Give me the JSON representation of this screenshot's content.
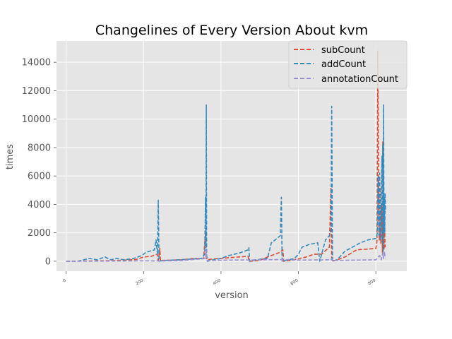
{
  "chart_data": {
    "type": "line",
    "title": "Changelines of Every Version About kvm",
    "xlabel": "version",
    "ylabel": "times",
    "xlim": [
      -25,
      880
    ],
    "ylim": [
      -700,
      15500
    ],
    "xticks": [
      0,
      200,
      400,
      600,
      800
    ],
    "yticks": [
      0,
      2000,
      4000,
      6000,
      8000,
      10000,
      12000,
      14000
    ],
    "grid": true,
    "legend_position": "top-right",
    "colors": {
      "background": "#e5e5e5",
      "grid": "#ffffff",
      "subCount": "#e24a33",
      "addCount": "#348abd",
      "annotationCount": "#988ed5"
    },
    "series": [
      {
        "name": "subCount",
        "color": "#e24a33",
        "points": [
          [
            0,
            0
          ],
          [
            60,
            20
          ],
          [
            120,
            40
          ],
          [
            180,
            120
          ],
          [
            200,
            300
          ],
          [
            220,
            350
          ],
          [
            235,
            500
          ],
          [
            238,
            50
          ],
          [
            242,
            900
          ],
          [
            244,
            0
          ],
          [
            250,
            60
          ],
          [
            300,
            100
          ],
          [
            330,
            200
          ],
          [
            355,
            200
          ],
          [
            360,
            2000
          ],
          [
            362,
            300
          ],
          [
            364,
            100
          ],
          [
            375,
            150
          ],
          [
            420,
            250
          ],
          [
            470,
            350
          ],
          [
            472,
            0
          ],
          [
            500,
            50
          ],
          [
            520,
            300
          ],
          [
            550,
            600
          ],
          [
            560,
            800
          ],
          [
            562,
            0
          ],
          [
            580,
            50
          ],
          [
            620,
            300
          ],
          [
            640,
            500
          ],
          [
            660,
            500
          ],
          [
            680,
            1000
          ],
          [
            684,
            5200
          ],
          [
            686,
            0
          ],
          [
            700,
            100
          ],
          [
            720,
            300
          ],
          [
            750,
            800
          ],
          [
            800,
            900
          ],
          [
            803,
            1400
          ],
          [
            805,
            14800
          ],
          [
            807,
            6000
          ],
          [
            809,
            1500
          ],
          [
            811,
            5200
          ],
          [
            813,
            1200
          ],
          [
            815,
            4000
          ],
          [
            817,
            600
          ],
          [
            818,
            8400
          ],
          [
            819,
            1500
          ],
          [
            820,
            6400
          ],
          [
            821,
            800
          ],
          [
            822,
            3200
          ],
          [
            823,
            2000
          ],
          [
            824,
            1000
          ],
          [
            825,
            1200
          ]
        ]
      },
      {
        "name": "addCount",
        "color": "#348abd",
        "points": [
          [
            0,
            0
          ],
          [
            30,
            0
          ],
          [
            45,
            100
          ],
          [
            60,
            200
          ],
          [
            80,
            100
          ],
          [
            100,
            300
          ],
          [
            115,
            100
          ],
          [
            130,
            200
          ],
          [
            150,
            100
          ],
          [
            175,
            200
          ],
          [
            195,
            400
          ],
          [
            205,
            600
          ],
          [
            215,
            700
          ],
          [
            228,
            800
          ],
          [
            232,
            1500
          ],
          [
            236,
            500
          ],
          [
            238,
            4300
          ],
          [
            240,
            0
          ],
          [
            250,
            50
          ],
          [
            290,
            100
          ],
          [
            320,
            150
          ],
          [
            350,
            200
          ],
          [
            358,
            500
          ],
          [
            360,
            4500
          ],
          [
            361,
            1000
          ],
          [
            362,
            11000
          ],
          [
            363,
            500
          ],
          [
            365,
            0
          ],
          [
            380,
            100
          ],
          [
            400,
            200
          ],
          [
            420,
            400
          ],
          [
            450,
            600
          ],
          [
            470,
            800
          ],
          [
            472,
            950
          ],
          [
            474,
            0
          ],
          [
            490,
            100
          ],
          [
            520,
            200
          ],
          [
            530,
            1300
          ],
          [
            540,
            1500
          ],
          [
            553,
            1800
          ],
          [
            556,
            4500
          ],
          [
            558,
            0
          ],
          [
            575,
            100
          ],
          [
            590,
            200
          ],
          [
            600,
            500
          ],
          [
            610,
            1000
          ],
          [
            630,
            1200
          ],
          [
            650,
            1300
          ],
          [
            655,
            0
          ],
          [
            670,
            1500
          ],
          [
            680,
            1800
          ],
          [
            684,
            2200
          ],
          [
            686,
            10900
          ],
          [
            688,
            0
          ],
          [
            700,
            100
          ],
          [
            720,
            700
          ],
          [
            740,
            1000
          ],
          [
            760,
            1300
          ],
          [
            780,
            1500
          ],
          [
            800,
            1600
          ],
          [
            804,
            2000
          ],
          [
            806,
            6000
          ],
          [
            808,
            1800
          ],
          [
            810,
            6200
          ],
          [
            812,
            1500
          ],
          [
            814,
            4500
          ],
          [
            816,
            7400
          ],
          [
            817,
            1300
          ],
          [
            818,
            8200
          ],
          [
            819,
            700
          ],
          [
            820,
            11000
          ],
          [
            821,
            2000
          ],
          [
            822,
            4500
          ],
          [
            823,
            2000
          ],
          [
            824,
            4800
          ],
          [
            825,
            3500
          ]
        ]
      },
      {
        "name": "annotationCount",
        "color": "#988ed5",
        "points": [
          [
            0,
            0
          ],
          [
            100,
            10
          ],
          [
            200,
            30
          ],
          [
            240,
            20
          ],
          [
            300,
            50
          ],
          [
            360,
            200
          ],
          [
            362,
            800
          ],
          [
            364,
            50
          ],
          [
            420,
            80
          ],
          [
            500,
            100
          ],
          [
            560,
            120
          ],
          [
            600,
            80
          ],
          [
            684,
            100
          ],
          [
            686,
            200
          ],
          [
            688,
            50
          ],
          [
            750,
            80
          ],
          [
            800,
            100
          ],
          [
            806,
            300
          ],
          [
            810,
            400
          ],
          [
            814,
            100
          ],
          [
            818,
            600
          ],
          [
            820,
            200
          ],
          [
            822,
            700
          ],
          [
            824,
            300
          ],
          [
            825,
            200
          ]
        ]
      }
    ]
  }
}
